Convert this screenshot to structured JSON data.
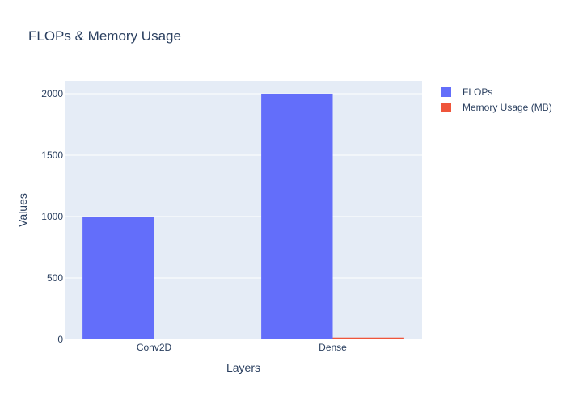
{
  "chart_data": {
    "type": "bar",
    "title": "FLOPs & Memory Usage",
    "xlabel": "Layers",
    "ylabel": "Values",
    "categories": [
      "Conv2D",
      "Dense"
    ],
    "series": [
      {
        "name": "FLOPs",
        "values": [
          1000,
          2000
        ],
        "color": "#636efa"
      },
      {
        "name": "Memory Usage (MB)",
        "values": [
          5,
          15
        ],
        "color": "#ef553b"
      }
    ],
    "ylim": [
      0,
      2105
    ],
    "yticks": [
      0,
      500,
      1000,
      1500,
      2000
    ],
    "grid": true,
    "legend": "right"
  },
  "colors": {
    "plot_background": "#e5ecf6",
    "gridline": "#ffffff",
    "text": "#2a3f5f"
  }
}
